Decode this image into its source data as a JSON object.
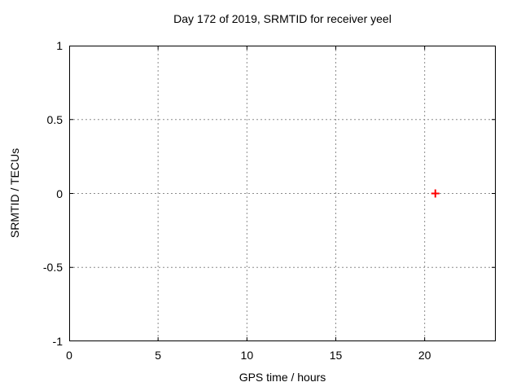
{
  "chart_data": {
    "type": "scatter",
    "title": "Day 172 of 2019, SRMTID for receiver yeel",
    "xlabel": "GPS time / hours",
    "ylabel": "SRMTID / TECUs",
    "xlim": [
      0,
      24
    ],
    "ylim": [
      -1,
      1
    ],
    "xticks": [
      0,
      5,
      10,
      15,
      20
    ],
    "yticks": [
      -1,
      -0.5,
      0,
      0.5,
      1
    ],
    "x_tick_labels": [
      "0",
      "5",
      "10",
      "15",
      "20"
    ],
    "y_tick_labels": [
      "-1",
      "-0.5",
      "0",
      "0.5",
      "1"
    ],
    "grid": true,
    "legend": "none",
    "colors": {
      "border": "#000000",
      "text": "#000000",
      "grid": "#8c8c8c",
      "point": "#ff0000",
      "background": "#ffffff"
    },
    "series": [
      {
        "name": "SRMTID",
        "marker": "plus",
        "color": "#ff0000",
        "points": [
          {
            "x": 20.6,
            "y": 0
          }
        ]
      }
    ]
  }
}
